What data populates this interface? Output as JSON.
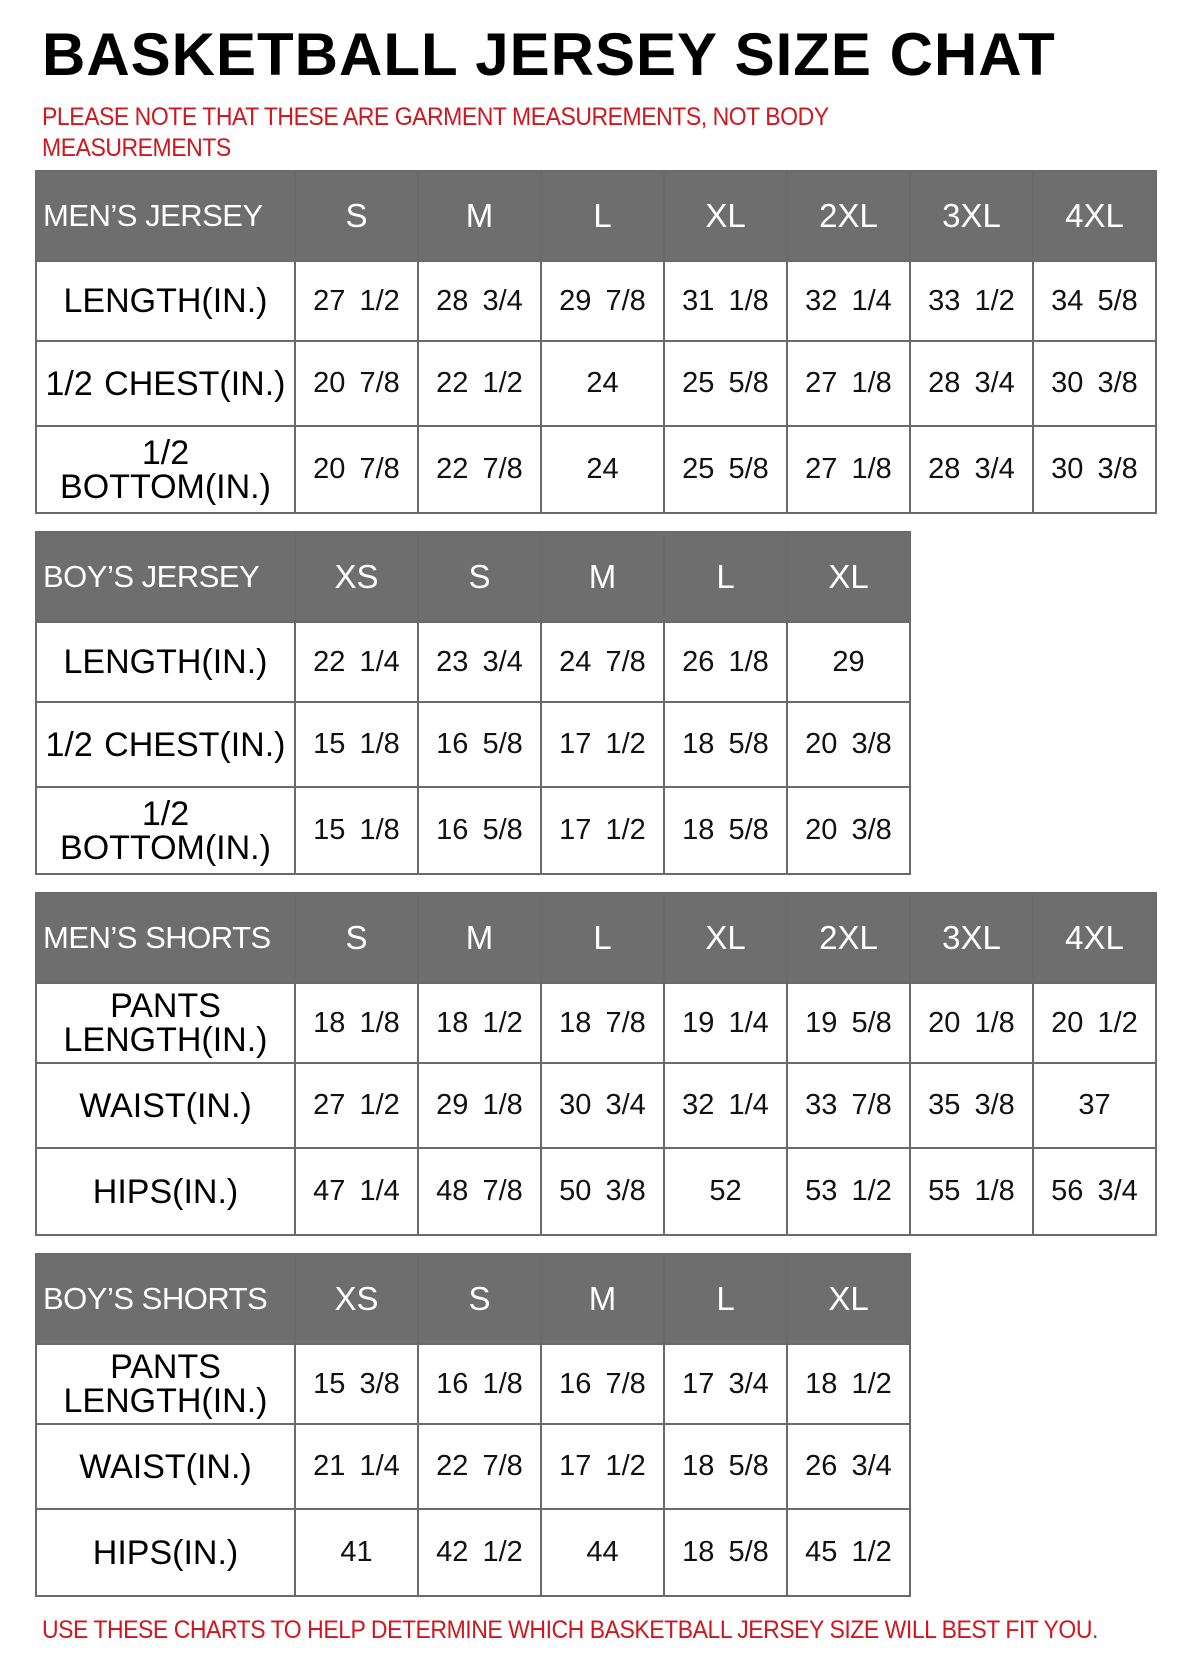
{
  "title": "BASKETBALL JERSEY SIZE CHAT",
  "note": "PLEASE NOTE THAT THESE ARE GARMENT MEASUREMENTS, NOT BODY MEASUREMENTS",
  "footer": "USE THESE CHARTS TO HELP DETERMINE WHICH BASKETBALL JERSEY SIZE WILL BEST FIT YOU.",
  "colors": {
    "header_bg": "#6e6e6e",
    "note_text": "#d0161e",
    "border": "#6a6a6a"
  },
  "tables": [
    {
      "heading": "MEN’S JERSEY",
      "sizes": [
        "S",
        "M",
        "L",
        "XL",
        "2XL",
        "3XL",
        "4XL"
      ],
      "rows": [
        {
          "label": "LENGTH(IN.)",
          "values": [
            "27 1/2",
            "28 3/4",
            "29 7/8",
            "31 1/8",
            "32 1/4",
            "33 1/2",
            "34 5/8"
          ]
        },
        {
          "label": "1/2 CHEST(IN.)",
          "values": [
            "20 7/8",
            "22 1/2",
            "24",
            "25 5/8",
            "27 1/8",
            "28 3/4",
            "30 3/8"
          ]
        },
        {
          "label": "1/2 BOTTOM(IN.)",
          "values": [
            "20 7/8",
            "22 7/8",
            "24",
            "25 5/8",
            "27 1/8",
            "28 3/4",
            "30 3/8"
          ]
        }
      ]
    },
    {
      "heading": "BOY’S JERSEY",
      "sizes": [
        "XS",
        "S",
        "M",
        "L",
        "XL"
      ],
      "rows": [
        {
          "label": "LENGTH(IN.)",
          "values": [
            "22 1/4",
            "23 3/4",
            "24 7/8",
            "26 1/8",
            "29"
          ]
        },
        {
          "label": "1/2 CHEST(IN.)",
          "values": [
            "15 1/8",
            "16 5/8",
            "17 1/2",
            "18 5/8",
            "20 3/8"
          ]
        },
        {
          "label": "1/2 BOTTOM(IN.)",
          "values": [
            "15 1/8",
            "16 5/8",
            "17 1/2",
            "18 5/8",
            "20 3/8"
          ]
        }
      ]
    },
    {
      "heading": "MEN’S SHORTS",
      "sizes": [
        "S",
        "M",
        "L",
        "XL",
        "2XL",
        "3XL",
        "4XL"
      ],
      "rows": [
        {
          "label": "PANTS LENGTH(IN.)",
          "values": [
            "18 1/8",
            "18 1/2",
            "18 7/8",
            "19 1/4",
            "19 5/8",
            "20 1/8",
            "20 1/2"
          ]
        },
        {
          "label": "WAIST(IN.)",
          "values": [
            "27 1/2",
            "29 1/8",
            "30 3/4",
            "32 1/4",
            "33 7/8",
            "35 3/8",
            "37"
          ]
        },
        {
          "label": "HIPS(IN.)",
          "values": [
            "47 1/4",
            "48 7/8",
            "50 3/8",
            "52",
            "53 1/2",
            "55 1/8",
            "56 3/4"
          ]
        }
      ]
    },
    {
      "heading": "BOY’S SHORTS",
      "sizes": [
        "XS",
        "S",
        "M",
        "L",
        "XL"
      ],
      "rows": [
        {
          "label": "PANTS LENGTH(IN.)",
          "values": [
            "15 3/8",
            "16 1/8",
            "16 7/8",
            "17 3/4",
            "18 1/2"
          ]
        },
        {
          "label": "WAIST(IN.)",
          "values": [
            "21 1/4",
            "22 7/8",
            "17 1/2",
            "18 5/8",
            "26 3/4"
          ]
        },
        {
          "label": "HIPS(IN.)",
          "values": [
            "41",
            "42 1/2",
            "44",
            "18 5/8",
            "45 1/2"
          ]
        }
      ]
    }
  ]
}
